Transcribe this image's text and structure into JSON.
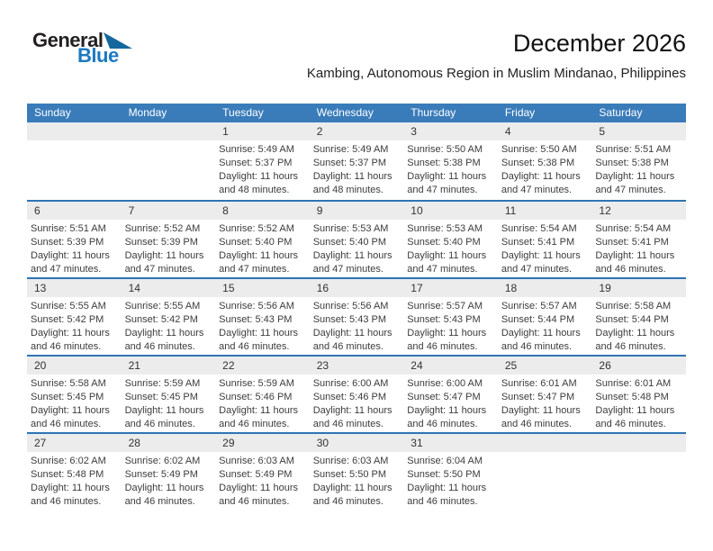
{
  "meta": {
    "title": "December 2026",
    "subtitle": "Kambing, Autonomous Region in Muslim Mindanao, Philippines"
  },
  "logo": {
    "line1": "General",
    "line2": "Blue"
  },
  "colors": {
    "header_blue": "#3a7cba",
    "divider_blue": "#2e74b5",
    "band_gray": "#ececec",
    "logo_blue": "#1b79c0",
    "logo_triangle": "#15689e"
  },
  "weekdays": [
    "Sunday",
    "Monday",
    "Tuesday",
    "Wednesday",
    "Thursday",
    "Friday",
    "Saturday"
  ],
  "weeks": [
    [
      null,
      null,
      {
        "day": "1",
        "sunrise": "Sunrise: 5:49 AM",
        "sunset": "Sunset: 5:37 PM",
        "daylight": "Daylight: 11 hours and 48 minutes."
      },
      {
        "day": "2",
        "sunrise": "Sunrise: 5:49 AM",
        "sunset": "Sunset: 5:37 PM",
        "daylight": "Daylight: 11 hours and 48 minutes."
      },
      {
        "day": "3",
        "sunrise": "Sunrise: 5:50 AM",
        "sunset": "Sunset: 5:38 PM",
        "daylight": "Daylight: 11 hours and 47 minutes."
      },
      {
        "day": "4",
        "sunrise": "Sunrise: 5:50 AM",
        "sunset": "Sunset: 5:38 PM",
        "daylight": "Daylight: 11 hours and 47 minutes."
      },
      {
        "day": "5",
        "sunrise": "Sunrise: 5:51 AM",
        "sunset": "Sunset: 5:38 PM",
        "daylight": "Daylight: 11 hours and 47 minutes."
      }
    ],
    [
      {
        "day": "6",
        "sunrise": "Sunrise: 5:51 AM",
        "sunset": "Sunset: 5:39 PM",
        "daylight": "Daylight: 11 hours and 47 minutes."
      },
      {
        "day": "7",
        "sunrise": "Sunrise: 5:52 AM",
        "sunset": "Sunset: 5:39 PM",
        "daylight": "Daylight: 11 hours and 47 minutes."
      },
      {
        "day": "8",
        "sunrise": "Sunrise: 5:52 AM",
        "sunset": "Sunset: 5:40 PM",
        "daylight": "Daylight: 11 hours and 47 minutes."
      },
      {
        "day": "9",
        "sunrise": "Sunrise: 5:53 AM",
        "sunset": "Sunset: 5:40 PM",
        "daylight": "Daylight: 11 hours and 47 minutes."
      },
      {
        "day": "10",
        "sunrise": "Sunrise: 5:53 AM",
        "sunset": "Sunset: 5:40 PM",
        "daylight": "Daylight: 11 hours and 47 minutes."
      },
      {
        "day": "11",
        "sunrise": "Sunrise: 5:54 AM",
        "sunset": "Sunset: 5:41 PM",
        "daylight": "Daylight: 11 hours and 47 minutes."
      },
      {
        "day": "12",
        "sunrise": "Sunrise: 5:54 AM",
        "sunset": "Sunset: 5:41 PM",
        "daylight": "Daylight: 11 hours and 46 minutes."
      }
    ],
    [
      {
        "day": "13",
        "sunrise": "Sunrise: 5:55 AM",
        "sunset": "Sunset: 5:42 PM",
        "daylight": "Daylight: 11 hours and 46 minutes."
      },
      {
        "day": "14",
        "sunrise": "Sunrise: 5:55 AM",
        "sunset": "Sunset: 5:42 PM",
        "daylight": "Daylight: 11 hours and 46 minutes."
      },
      {
        "day": "15",
        "sunrise": "Sunrise: 5:56 AM",
        "sunset": "Sunset: 5:43 PM",
        "daylight": "Daylight: 11 hours and 46 minutes."
      },
      {
        "day": "16",
        "sunrise": "Sunrise: 5:56 AM",
        "sunset": "Sunset: 5:43 PM",
        "daylight": "Daylight: 11 hours and 46 minutes."
      },
      {
        "day": "17",
        "sunrise": "Sunrise: 5:57 AM",
        "sunset": "Sunset: 5:43 PM",
        "daylight": "Daylight: 11 hours and 46 minutes."
      },
      {
        "day": "18",
        "sunrise": "Sunrise: 5:57 AM",
        "sunset": "Sunset: 5:44 PM",
        "daylight": "Daylight: 11 hours and 46 minutes."
      },
      {
        "day": "19",
        "sunrise": "Sunrise: 5:58 AM",
        "sunset": "Sunset: 5:44 PM",
        "daylight": "Daylight: 11 hours and 46 minutes."
      }
    ],
    [
      {
        "day": "20",
        "sunrise": "Sunrise: 5:58 AM",
        "sunset": "Sunset: 5:45 PM",
        "daylight": "Daylight: 11 hours and 46 minutes."
      },
      {
        "day": "21",
        "sunrise": "Sunrise: 5:59 AM",
        "sunset": "Sunset: 5:45 PM",
        "daylight": "Daylight: 11 hours and 46 minutes."
      },
      {
        "day": "22",
        "sunrise": "Sunrise: 5:59 AM",
        "sunset": "Sunset: 5:46 PM",
        "daylight": "Daylight: 11 hours and 46 minutes."
      },
      {
        "day": "23",
        "sunrise": "Sunrise: 6:00 AM",
        "sunset": "Sunset: 5:46 PM",
        "daylight": "Daylight: 11 hours and 46 minutes."
      },
      {
        "day": "24",
        "sunrise": "Sunrise: 6:00 AM",
        "sunset": "Sunset: 5:47 PM",
        "daylight": "Daylight: 11 hours and 46 minutes."
      },
      {
        "day": "25",
        "sunrise": "Sunrise: 6:01 AM",
        "sunset": "Sunset: 5:47 PM",
        "daylight": "Daylight: 11 hours and 46 minutes."
      },
      {
        "day": "26",
        "sunrise": "Sunrise: 6:01 AM",
        "sunset": "Sunset: 5:48 PM",
        "daylight": "Daylight: 11 hours and 46 minutes."
      }
    ],
    [
      {
        "day": "27",
        "sunrise": "Sunrise: 6:02 AM",
        "sunset": "Sunset: 5:48 PM",
        "daylight": "Daylight: 11 hours and 46 minutes."
      },
      {
        "day": "28",
        "sunrise": "Sunrise: 6:02 AM",
        "sunset": "Sunset: 5:49 PM",
        "daylight": "Daylight: 11 hours and 46 minutes."
      },
      {
        "day": "29",
        "sunrise": "Sunrise: 6:03 AM",
        "sunset": "Sunset: 5:49 PM",
        "daylight": "Daylight: 11 hours and 46 minutes."
      },
      {
        "day": "30",
        "sunrise": "Sunrise: 6:03 AM",
        "sunset": "Sunset: 5:50 PM",
        "daylight": "Daylight: 11 hours and 46 minutes."
      },
      {
        "day": "31",
        "sunrise": "Sunrise: 6:04 AM",
        "sunset": "Sunset: 5:50 PM",
        "daylight": "Daylight: 11 hours and 46 minutes."
      },
      null,
      null
    ]
  ]
}
